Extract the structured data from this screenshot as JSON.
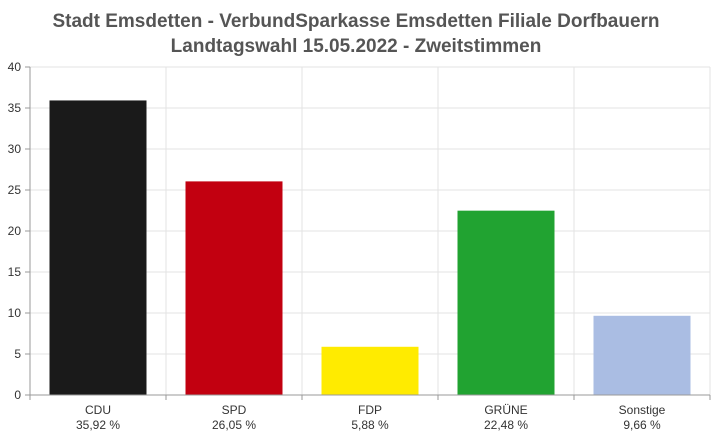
{
  "chart_data": {
    "type": "bar",
    "title": "Stadt Emsdetten - VerbundSparkasse Emsdetten Filiale Dorfbauern",
    "subtitle": "Landtagswahl 15.05.2022  - Zweitstimmen",
    "categories": [
      "CDU",
      "SPD",
      "FDP",
      "GRÜNE",
      "Sonstige"
    ],
    "value_labels": [
      "35,92 %",
      "26,05 %",
      "5,88 %",
      "22,48 %",
      "9,66 %"
    ],
    "values": [
      35.92,
      26.05,
      5.88,
      22.48,
      9.66
    ],
    "colors": [
      "#1a1a1a",
      "#c20010",
      "#ffeb00",
      "#21a331",
      "#aabde3"
    ],
    "ylim": [
      0,
      40
    ],
    "yticks": [
      "0",
      "5",
      "10",
      "15",
      "20",
      "25",
      "30",
      "35",
      "40"
    ],
    "grid": true,
    "legend": "none"
  }
}
